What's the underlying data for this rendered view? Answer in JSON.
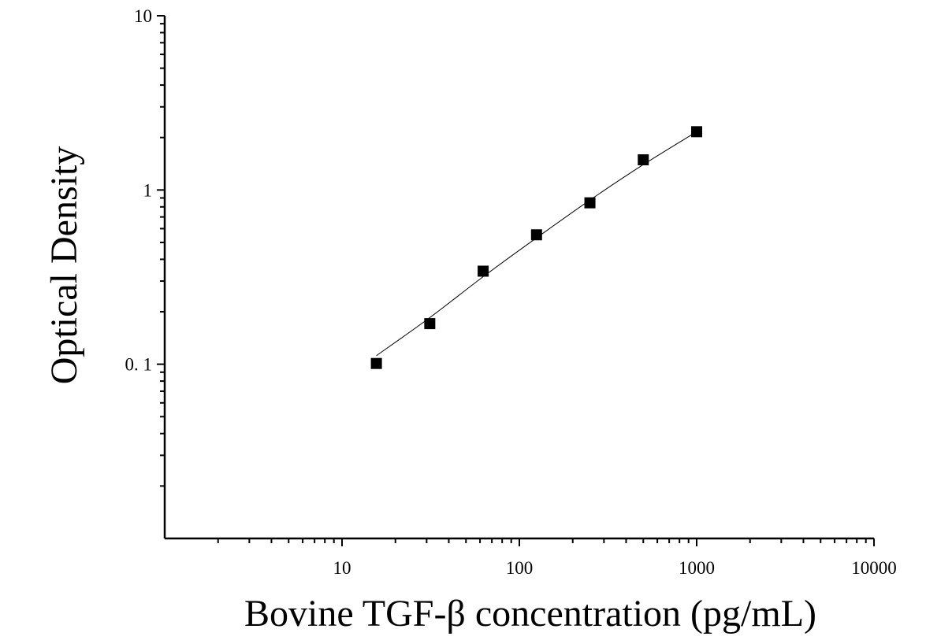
{
  "chart_data": {
    "type": "scatter",
    "title": "",
    "xlabel": "Bovine TGF-β concentration (pg/mL)",
    "ylabel": "Optical Density",
    "x_scale": "log",
    "y_scale": "log",
    "xlim": [
      1,
      10000
    ],
    "ylim": [
      0.01,
      10
    ],
    "x_ticks": [
      10,
      100,
      1000,
      10000
    ],
    "x_tick_labels": [
      "10",
      "100",
      "1000",
      "10000"
    ],
    "y_ticks": [
      0.1,
      1,
      10
    ],
    "y_tick_labels": [
      "0. 1",
      "1",
      "10"
    ],
    "grid": false,
    "legend": "none",
    "marker": "filled-square",
    "marker_color": "#000000",
    "series": [
      {
        "x": [
          15.625,
          31.25,
          62.5,
          125,
          250,
          500,
          1000
        ],
        "y": [
          0.101,
          0.171,
          0.342,
          0.553,
          0.844,
          1.49,
          2.16
        ]
      }
    ],
    "fit_curve": {
      "x": [
        15.625,
        31.25,
        62.5,
        125,
        250,
        500,
        1000
      ],
      "y": [
        0.112,
        0.185,
        0.318,
        0.531,
        0.875,
        1.398,
        2.16
      ]
    }
  }
}
